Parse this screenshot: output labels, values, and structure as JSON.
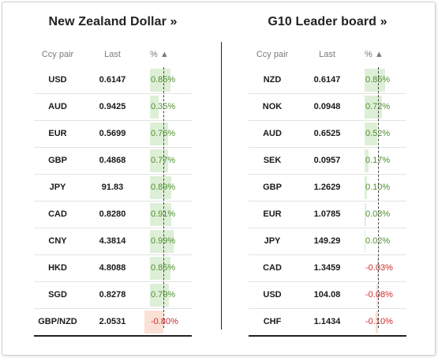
{
  "left": {
    "title": "New Zealand Dollar »",
    "headers": {
      "pair": "Ccy pair",
      "last": "Last",
      "pct": "% ▲"
    },
    "rows": [
      {
        "pair": "USD",
        "last": "0.6147",
        "pct": "0.85%",
        "value": 0.85
      },
      {
        "pair": "AUD",
        "last": "0.9425",
        "pct": "0.35%",
        "value": 0.35
      },
      {
        "pair": "EUR",
        "last": "0.5699",
        "pct": "0.76%",
        "value": 0.76
      },
      {
        "pair": "GBP",
        "last": "0.4868",
        "pct": "0.77%",
        "value": 0.77
      },
      {
        "pair": "JPY",
        "last": "91.83",
        "pct": "0.89%",
        "value": 0.89
      },
      {
        "pair": "CAD",
        "last": "0.8280",
        "pct": "0.91%",
        "value": 0.91
      },
      {
        "pair": "CNY",
        "last": "4.3814",
        "pct": "0.99%",
        "value": 0.99
      },
      {
        "pair": "HKD",
        "last": "4.8088",
        "pct": "0.85%",
        "value": 0.85
      },
      {
        "pair": "SGD",
        "last": "0.8278",
        "pct": "0.79%",
        "value": 0.79
      },
      {
        "pair": "GBP/NZD",
        "last": "2.0531",
        "pct": "-0.80%",
        "value": -0.8
      }
    ]
  },
  "right": {
    "title": "G10 Leader board »",
    "headers": {
      "pair": "Ccy pair",
      "last": "Last",
      "pct": "% ▲"
    },
    "rows": [
      {
        "pair": "NZD",
        "last": "0.6147",
        "pct": "0.85%",
        "value": 0.85
      },
      {
        "pair": "NOK",
        "last": "0.0948",
        "pct": "0.72%",
        "value": 0.72
      },
      {
        "pair": "AUD",
        "last": "0.6525",
        "pct": "0.52%",
        "value": 0.52
      },
      {
        "pair": "SEK",
        "last": "0.0957",
        "pct": "0.17%",
        "value": 0.17
      },
      {
        "pair": "GBP",
        "last": "1.2629",
        "pct": "0.10%",
        "value": 0.1
      },
      {
        "pair": "EUR",
        "last": "1.0785",
        "pct": "0.08%",
        "value": 0.08
      },
      {
        "pair": "JPY",
        "last": "149.29",
        "pct": "0.02%",
        "value": 0.02
      },
      {
        "pair": "CAD",
        "last": "1.3459",
        "pct": "-0.03%",
        "value": -0.03
      },
      {
        "pair": "USD",
        "last": "104.08",
        "pct": "-0.08%",
        "value": -0.08
      },
      {
        "pair": "CHF",
        "last": "1.1434",
        "pct": "-0.10%",
        "value": -0.1
      }
    ]
  },
  "colors": {
    "positive": "#4f8f2e",
    "negative": "#cc2b2b",
    "positive_bar": "#deefd7",
    "negative_bar": "#fbe0d6"
  }
}
